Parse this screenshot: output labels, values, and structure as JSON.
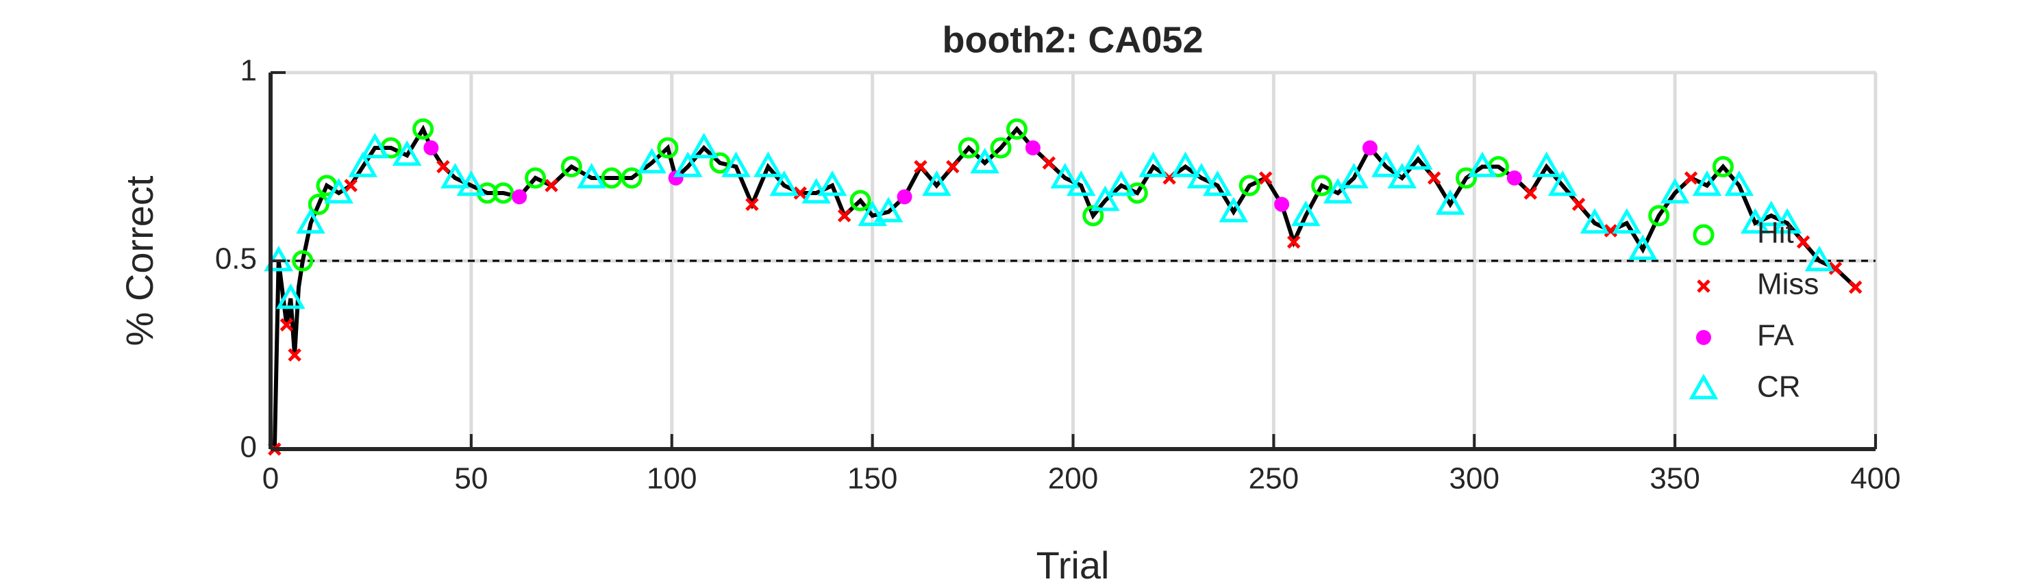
{
  "chart_data": {
    "type": "line",
    "title": "booth2: CA052",
    "xlabel": "Trial",
    "ylabel": "% Correct",
    "xlim": [
      0,
      400
    ],
    "ylim": [
      0,
      1
    ],
    "xticks": [
      0,
      50,
      100,
      150,
      200,
      250,
      300,
      350,
      400
    ],
    "yticks": [
      0,
      0.5,
      1
    ],
    "grid": true,
    "hline": 0.5,
    "legend": "right",
    "line": {
      "color": "#000000",
      "x": [
        1,
        2,
        4,
        5,
        6,
        7,
        8,
        10,
        12,
        14,
        17,
        20,
        23,
        26,
        30,
        34,
        38,
        40,
        43,
        46,
        50,
        54,
        58,
        62,
        66,
        70,
        75,
        80,
        85,
        90,
        95,
        99,
        101,
        104,
        108,
        112,
        116,
        120,
        124,
        128,
        132,
        136,
        140,
        143,
        147,
        150,
        154,
        158,
        162,
        166,
        170,
        174,
        178,
        182,
        186,
        190,
        194,
        198,
        202,
        205,
        208,
        212,
        216,
        220,
        224,
        228,
        232,
        236,
        240,
        244,
        248,
        252,
        255,
        258,
        262,
        266,
        270,
        274,
        278,
        282,
        286,
        290,
        294,
        298,
        302,
        306,
        310,
        314,
        318,
        322,
        326,
        330,
        334,
        338,
        342,
        346,
        350,
        354,
        358,
        362,
        366,
        370,
        374,
        378,
        382,
        386,
        390,
        395
      ],
      "values": [
        0,
        0.5,
        0.33,
        0.4,
        0.25,
        0.43,
        0.5,
        0.6,
        0.65,
        0.7,
        0.68,
        0.7,
        0.75,
        0.8,
        0.8,
        0.78,
        0.85,
        0.8,
        0.75,
        0.72,
        0.7,
        0.68,
        0.68,
        0.67,
        0.72,
        0.7,
        0.75,
        0.72,
        0.72,
        0.72,
        0.76,
        0.8,
        0.72,
        0.75,
        0.8,
        0.76,
        0.75,
        0.65,
        0.75,
        0.7,
        0.68,
        0.68,
        0.7,
        0.62,
        0.66,
        0.62,
        0.63,
        0.67,
        0.75,
        0.7,
        0.75,
        0.8,
        0.76,
        0.8,
        0.85,
        0.8,
        0.76,
        0.72,
        0.7,
        0.62,
        0.66,
        0.7,
        0.68,
        0.75,
        0.72,
        0.75,
        0.72,
        0.7,
        0.63,
        0.7,
        0.72,
        0.65,
        0.55,
        0.62,
        0.7,
        0.68,
        0.72,
        0.8,
        0.75,
        0.72,
        0.77,
        0.72,
        0.65,
        0.72,
        0.75,
        0.75,
        0.72,
        0.68,
        0.75,
        0.7,
        0.65,
        0.6,
        0.58,
        0.6,
        0.53,
        0.62,
        0.68,
        0.72,
        0.7,
        0.75,
        0.7,
        0.6,
        0.62,
        0.6,
        0.55,
        0.5,
        0.48,
        0.43
      ]
    },
    "series": [
      {
        "name": "Hit",
        "color": "#00ff00",
        "marker": "circle",
        "x": [
          8,
          12,
          14,
          30,
          38,
          54,
          58,
          66,
          75,
          85,
          90,
          99,
          112,
          147,
          174,
          182,
          186,
          205,
          216,
          244,
          262,
          298,
          306,
          346,
          362
        ],
        "values": [
          0.5,
          0.65,
          0.7,
          0.8,
          0.85,
          0.68,
          0.68,
          0.72,
          0.75,
          0.72,
          0.72,
          0.8,
          0.76,
          0.66,
          0.8,
          0.8,
          0.85,
          0.62,
          0.68,
          0.7,
          0.7,
          0.72,
          0.75,
          0.62,
          0.75
        ]
      },
      {
        "name": "Miss",
        "color": "#ff0000",
        "marker": "x",
        "x": [
          1,
          4,
          6,
          20,
          43,
          70,
          120,
          132,
          143,
          162,
          170,
          194,
          224,
          248,
          255,
          290,
          314,
          326,
          334,
          354,
          382,
          390,
          395
        ],
        "values": [
          0,
          0.33,
          0.25,
          0.7,
          0.75,
          0.7,
          0.65,
          0.68,
          0.62,
          0.75,
          0.75,
          0.76,
          0.72,
          0.72,
          0.55,
          0.72,
          0.68,
          0.65,
          0.58,
          0.72,
          0.55,
          0.48,
          0.43
        ]
      },
      {
        "name": "FA",
        "color": "#ff00ff",
        "marker": "dot",
        "x": [
          40,
          62,
          101,
          158,
          190,
          252,
          274,
          310
        ],
        "values": [
          0.8,
          0.67,
          0.72,
          0.67,
          0.8,
          0.65,
          0.8,
          0.72
        ]
      },
      {
        "name": "CR",
        "color": "#00ffff",
        "marker": "triangle",
        "x": [
          2,
          5,
          10,
          17,
          23,
          26,
          34,
          46,
          50,
          80,
          95,
          104,
          108,
          116,
          124,
          128,
          136,
          140,
          150,
          154,
          166,
          178,
          198,
          202,
          208,
          212,
          220,
          228,
          232,
          236,
          240,
          258,
          266,
          270,
          278,
          282,
          286,
          294,
          302,
          318,
          322,
          330,
          338,
          342,
          350,
          358,
          366,
          370,
          374,
          378,
          386
        ],
        "values": [
          0.5,
          0.4,
          0.6,
          0.68,
          0.75,
          0.8,
          0.78,
          0.72,
          0.7,
          0.72,
          0.76,
          0.75,
          0.8,
          0.75,
          0.75,
          0.7,
          0.68,
          0.7,
          0.62,
          0.63,
          0.7,
          0.76,
          0.72,
          0.7,
          0.66,
          0.7,
          0.75,
          0.75,
          0.72,
          0.7,
          0.63,
          0.62,
          0.68,
          0.72,
          0.75,
          0.72,
          0.77,
          0.65,
          0.75,
          0.75,
          0.7,
          0.6,
          0.6,
          0.53,
          0.68,
          0.7,
          0.7,
          0.6,
          0.62,
          0.6,
          0.5
        ]
      }
    ]
  }
}
